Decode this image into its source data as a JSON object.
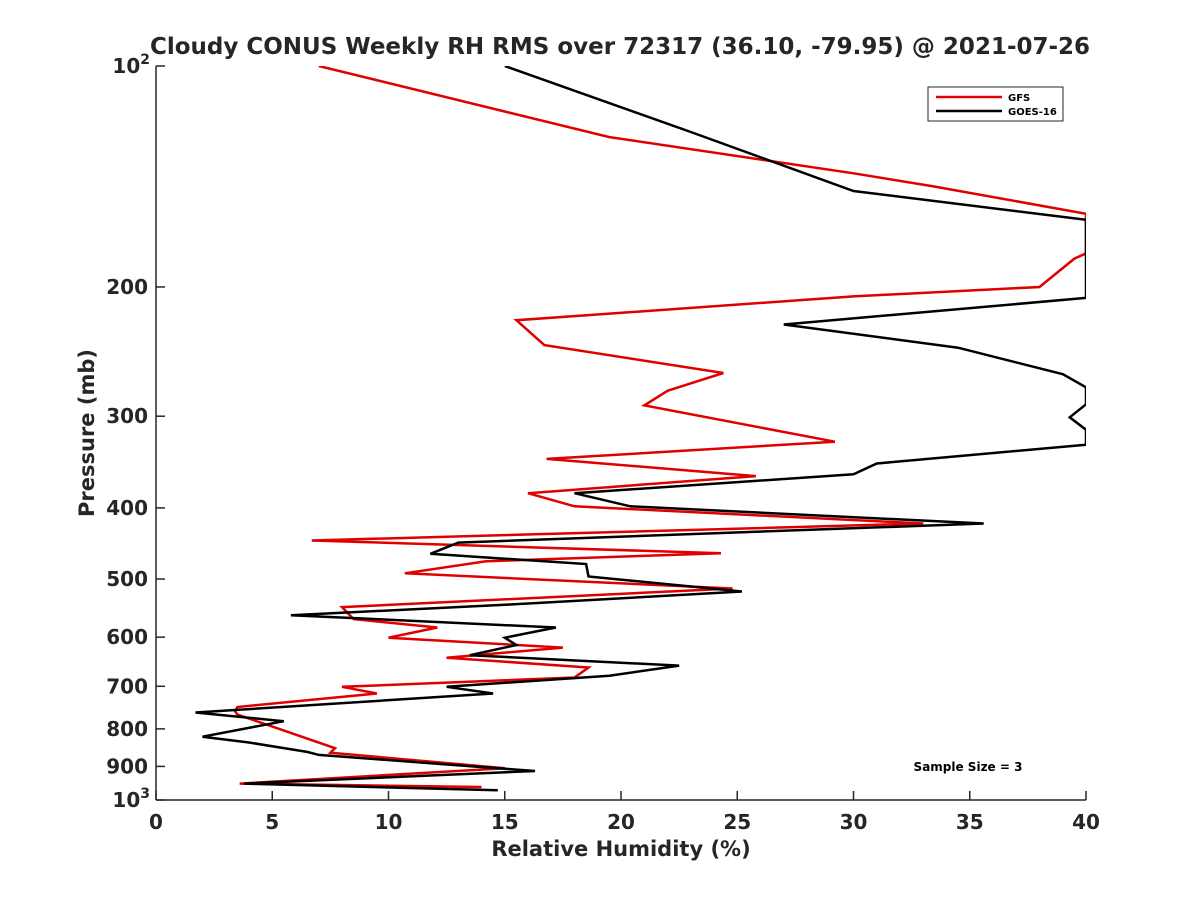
{
  "chart_data": {
    "type": "line",
    "title": "Cloudy CONUS Weekly RH RMS over 72317 (36.10, -79.95) @ 2021-07-26",
    "xlabel": "Relative Humidity (%)",
    "ylabel": "Pressure (mb)",
    "xlim": [
      0,
      40
    ],
    "ylim": [
      100,
      1000
    ],
    "y_scale": "log",
    "y_reversed": true,
    "x_ticks": [
      "0",
      "5",
      "10",
      "15",
      "20",
      "25",
      "30",
      "35",
      "40"
    ],
    "y_ticks": [
      {
        "value": 100,
        "label": "10",
        "sup": "2"
      },
      {
        "value": 200,
        "label": "200"
      },
      {
        "value": 300,
        "label": "300"
      },
      {
        "value": 400,
        "label": "400"
      },
      {
        "value": 500,
        "label": "500"
      },
      {
        "value": 600,
        "label": "600"
      },
      {
        "value": 700,
        "label": "700"
      },
      {
        "value": 800,
        "label": "800"
      },
      {
        "value": 900,
        "label": "900"
      },
      {
        "value": 1000,
        "label": "10",
        "sup": "3"
      }
    ],
    "legend_position": "top-right",
    "annotation": "Sample Size = 3",
    "series": [
      {
        "name": "GFS",
        "color": "#e00000",
        "points": [
          [
            7.0,
            100
          ],
          [
            19.5,
            125
          ],
          [
            30.0,
            140
          ],
          [
            33.5,
            146
          ],
          [
            40.0,
            159
          ],
          [
            40.0,
            180
          ],
          [
            39.5,
            183
          ],
          [
            38.0,
            200
          ],
          [
            30.0,
            206
          ],
          [
            15.5,
            222
          ],
          [
            16.7,
            240
          ],
          [
            24.4,
            262
          ],
          [
            22.0,
            277
          ],
          [
            21.0,
            290
          ],
          [
            29.2,
            325
          ],
          [
            16.8,
            343
          ],
          [
            25.8,
            362
          ],
          [
            16.0,
            382
          ],
          [
            18.0,
            398
          ],
          [
            33.0,
            420
          ],
          [
            6.7,
            443
          ],
          [
            24.3,
            461
          ],
          [
            14.2,
            473
          ],
          [
            10.7,
            491
          ],
          [
            24.8,
            515
          ],
          [
            8.0,
            546
          ],
          [
            8.5,
            567
          ],
          [
            12.1,
            582
          ],
          [
            10.0,
            601
          ],
          [
            17.5,
            620
          ],
          [
            12.5,
            640
          ],
          [
            18.6,
            660
          ],
          [
            18.0,
            681
          ],
          [
            8.0,
            701
          ],
          [
            9.5,
            716
          ],
          [
            3.5,
            747
          ],
          [
            3.4,
            757
          ],
          [
            3.5,
            765
          ],
          [
            4.8,
            790
          ],
          [
            7.7,
            850
          ],
          [
            7.5,
            862
          ],
          [
            15.0,
            905
          ],
          [
            3.6,
            950
          ],
          [
            14.0,
            960
          ]
        ]
      },
      {
        "name": "GOES-16",
        "color": "#000000",
        "points": [
          [
            15.0,
            100
          ],
          [
            23.0,
            123
          ],
          [
            30.0,
            148
          ],
          [
            40.0,
            162
          ],
          [
            40.0,
            207
          ],
          [
            27.0,
            225
          ],
          [
            34.5,
            242
          ],
          [
            39.0,
            263
          ],
          [
            40.0,
            274
          ],
          [
            40.0,
            289
          ],
          [
            39.3,
            301
          ],
          [
            40.0,
            313
          ],
          [
            40.0,
            328
          ],
          [
            31.0,
            348
          ],
          [
            30.0,
            360
          ],
          [
            18.0,
            382
          ],
          [
            20.4,
            398
          ],
          [
            35.6,
            420
          ],
          [
            13.0,
            446
          ],
          [
            11.8,
            462
          ],
          [
            18.5,
            477
          ],
          [
            18.6,
            496
          ],
          [
            25.2,
            520
          ],
          [
            15.0,
            542
          ],
          [
            5.8,
            560
          ],
          [
            17.2,
            582
          ],
          [
            15.0,
            601
          ],
          [
            15.5,
            615
          ],
          [
            13.5,
            635
          ],
          [
            22.5,
            656
          ],
          [
            19.5,
            677
          ],
          [
            12.5,
            701
          ],
          [
            14.5,
            716
          ],
          [
            1.7,
            760
          ],
          [
            5.5,
            781
          ],
          [
            2.0,
            820
          ],
          [
            4.0,
            835
          ],
          [
            6.5,
            860
          ],
          [
            7.0,
            868
          ],
          [
            16.3,
            913
          ],
          [
            3.8,
            950
          ],
          [
            14.7,
            970
          ]
        ]
      }
    ]
  }
}
